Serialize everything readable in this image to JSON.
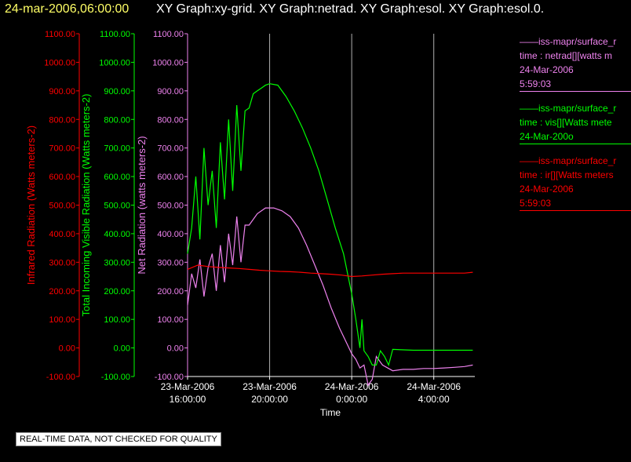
{
  "header": {
    "timestamp": "24-mar-2006,06:00:00",
    "graph_titles": "XY Graph:xy-grid.  XY Graph:netrad.  XY Graph:esol.  XY Graph:esol.0."
  },
  "legend": [
    {
      "lines": [
        "——iss-mapr/surface_r",
        "time : netrad[][watts m",
        "24-Mar-2006",
        "5:59:03"
      ],
      "color": "#ee82ee"
    },
    {
      "lines": [
        "——iss-mapr/surface_r",
        "time : vis[][Watts mete",
        "24-Mar-200o"
      ],
      "color": "#00ff00"
    },
    {
      "lines": [
        "——iss-mapr/surface_r",
        "time : ir[][Watts meters",
        "24-Mar-2006",
        "5:59:03"
      ],
      "color": "#ff0000"
    }
  ],
  "notice": "REAL-TIME DATA, NOT CHECKED FOR QUALITY",
  "chart_data": {
    "type": "line",
    "xlabel": "Time",
    "x_ticks": [
      {
        "hour": 16,
        "line1": "23-Mar-2006",
        "line2": "16:00:00"
      },
      {
        "hour": 20,
        "line1": "23-Mar-2006",
        "line2": "20:00:00"
      },
      {
        "hour": 24,
        "line1": "24-Mar-2006",
        "line2": "0:00:00"
      },
      {
        "hour": 28,
        "line1": "24-Mar-2006",
        "line2": "4:00:00"
      }
    ],
    "xlim_hours": [
      16,
      30
    ],
    "ylim": [
      -100,
      1100
    ],
    "y_ticks": [
      "-100.00",
      "0.00",
      "100.00",
      "200.00",
      "300.00",
      "400.00",
      "500.00",
      "600.00",
      "700.00",
      "800.00",
      "900.00",
      "1000.00",
      "1100.00"
    ],
    "axes": [
      {
        "label": "Infrared Radiation (Watts meters-2)",
        "color": "#ff0000"
      },
      {
        "label": "Total Incoming Visible Radiation (Watts meters-2)",
        "color": "#00ff00"
      },
      {
        "label": "Net Radiation (watts meters-2)",
        "color": "#ee82ee"
      }
    ],
    "grid_color": "#b0b0b0",
    "series": [
      {
        "name": "netrad",
        "color": "#ee82ee",
        "x": [
          16.0,
          16.2,
          16.4,
          16.6,
          16.8,
          17.0,
          17.2,
          17.4,
          17.6,
          17.8,
          18.0,
          18.2,
          18.4,
          18.6,
          18.8,
          19.0,
          19.4,
          19.8,
          20.2,
          20.6,
          21.0,
          21.4,
          21.8,
          22.2,
          22.6,
          23.0,
          23.4,
          23.8,
          24.0,
          24.2,
          24.4,
          24.6,
          24.8,
          25.0,
          25.2,
          25.5,
          26.0,
          26.5,
          27.0,
          27.5,
          28.0,
          28.5,
          29.0,
          29.5,
          29.9
        ],
        "y": [
          150,
          260,
          210,
          310,
          180,
          280,
          330,
          200,
          360,
          230,
          400,
          290,
          460,
          300,
          430,
          430,
          470,
          490,
          490,
          480,
          460,
          420,
          360,
          290,
          220,
          140,
          70,
          10,
          -20,
          -40,
          -70,
          -60,
          -130,
          -110,
          -30,
          -60,
          -80,
          -75,
          -75,
          -72,
          -72,
          -70,
          -68,
          -65,
          -60
        ]
      },
      {
        "name": "vis",
        "color": "#00ff00",
        "x": [
          16.0,
          16.2,
          16.4,
          16.6,
          16.8,
          17.0,
          17.2,
          17.4,
          17.6,
          17.8,
          18.0,
          18.2,
          18.4,
          18.6,
          18.8,
          19.0,
          19.2,
          19.4,
          19.6,
          19.8,
          20.0,
          20.4,
          20.8,
          21.2,
          21.6,
          22.0,
          22.4,
          22.8,
          23.2,
          23.6,
          24.0,
          24.2,
          24.4,
          24.5,
          24.6,
          24.8,
          25.0,
          25.2,
          25.4,
          25.6,
          25.8,
          26.0,
          27.0,
          28.0,
          29.0,
          29.9
        ],
        "y": [
          330,
          420,
          600,
          380,
          700,
          500,
          620,
          420,
          720,
          520,
          800,
          550,
          850,
          620,
          830,
          840,
          890,
          900,
          910,
          920,
          925,
          920,
          880,
          830,
          770,
          700,
          620,
          520,
          420,
          330,
          190,
          100,
          0,
          100,
          -10,
          -30,
          -60,
          -60,
          -10,
          -30,
          -60,
          -5,
          -8,
          -8,
          -8,
          -8
        ]
      },
      {
        "name": "ir",
        "color": "#ff0000",
        "x": [
          16.0,
          16.5,
          17.0,
          17.5,
          18.0,
          18.5,
          19.0,
          19.5,
          20.0,
          20.5,
          21.0,
          21.5,
          22.0,
          22.5,
          23.0,
          23.5,
          24.0,
          24.5,
          25.0,
          25.5,
          26.0,
          26.5,
          27.0,
          27.5,
          28.0,
          28.5,
          29.0,
          29.5,
          29.9
        ],
        "y": [
          275,
          290,
          285,
          282,
          280,
          278,
          275,
          272,
          270,
          268,
          267,
          265,
          262,
          260,
          258,
          255,
          250,
          252,
          255,
          258,
          260,
          262,
          262,
          262,
          262,
          262,
          262,
          262,
          265
        ]
      }
    ]
  }
}
